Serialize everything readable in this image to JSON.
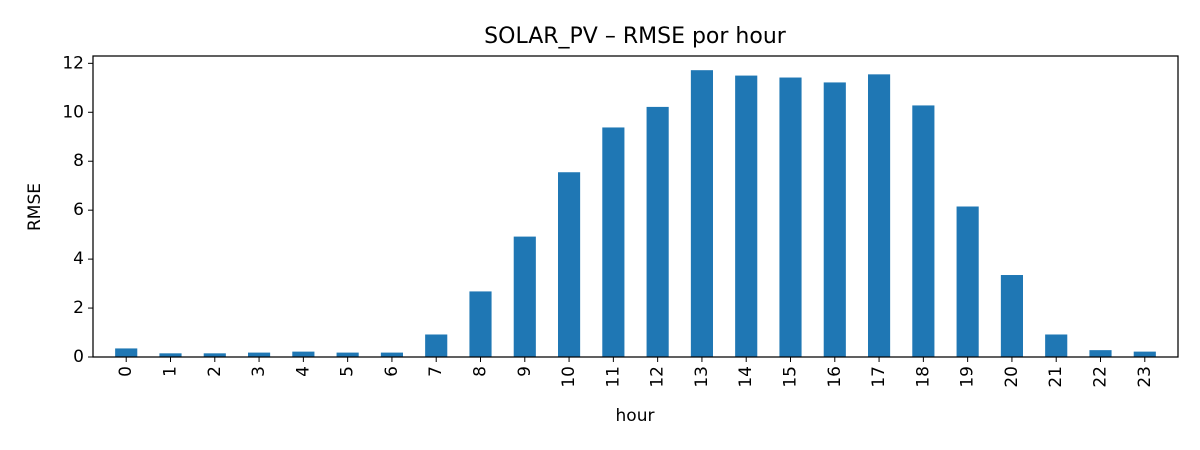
{
  "chart_data": {
    "type": "bar",
    "title": "SOLAR_PV – RMSE por hour",
    "xlabel": "hour",
    "ylabel": "RMSE",
    "categories": [
      "0",
      "1",
      "2",
      "3",
      "4",
      "5",
      "6",
      "7",
      "8",
      "9",
      "10",
      "11",
      "12",
      "13",
      "14",
      "15",
      "16",
      "17",
      "18",
      "19",
      "20",
      "21",
      "22",
      "23"
    ],
    "values": [
      0.35,
      0.15,
      0.15,
      0.18,
      0.22,
      0.18,
      0.18,
      0.92,
      2.68,
      4.92,
      7.55,
      9.38,
      10.22,
      11.72,
      11.5,
      11.42,
      11.22,
      11.55,
      10.28,
      6.15,
      3.35,
      0.92,
      0.28,
      0.22
    ],
    "ylim": [
      0,
      12.3
    ],
    "yticks": [
      0,
      2,
      4,
      6,
      8,
      10,
      12
    ],
    "grid": false,
    "legend": "none",
    "bar_color": "#1f77b4"
  }
}
